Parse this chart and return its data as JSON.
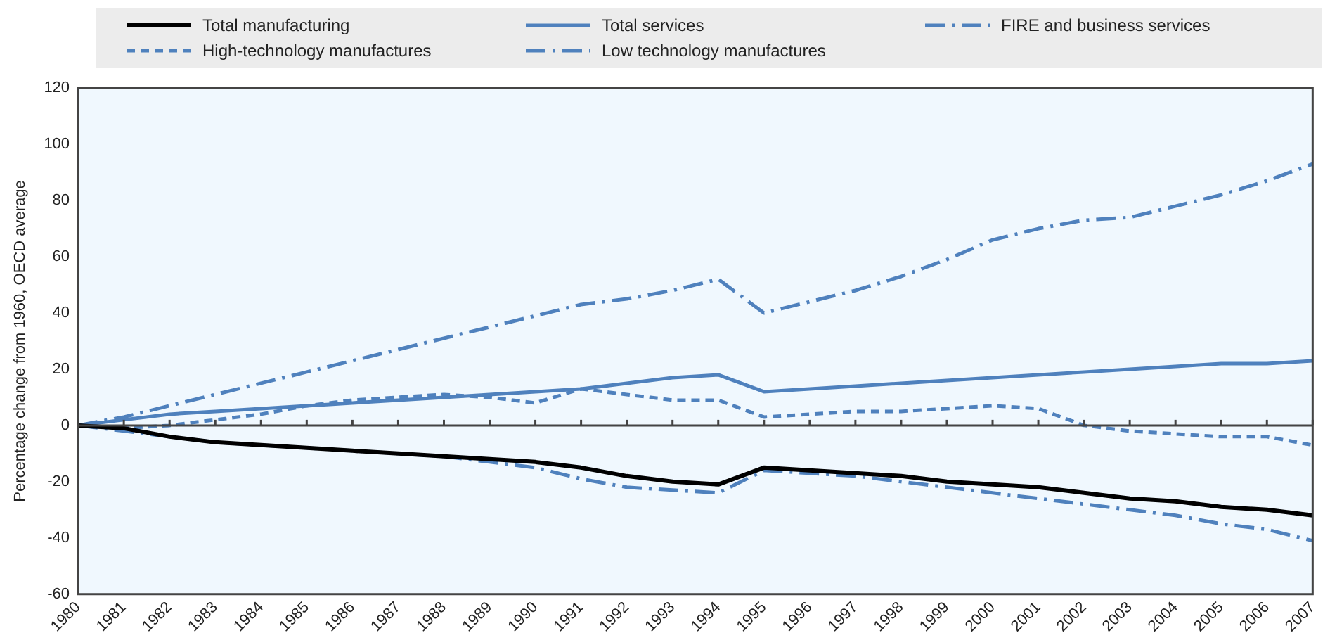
{
  "chart_data": {
    "type": "line",
    "ylabel": "Percentage change from 1960, OECD average",
    "categories": [
      "1980",
      "1981",
      "1982",
      "1983",
      "1984",
      "1985",
      "1986",
      "1987",
      "1988",
      "1989",
      "1990",
      "1991",
      "1992",
      "1993",
      "1994",
      "1995",
      "1996",
      "1997",
      "1998",
      "1999",
      "2000",
      "2001",
      "2002",
      "2003",
      "2004",
      "2005",
      "2006",
      "2007"
    ],
    "ylim": [
      -60,
      120
    ],
    "yticks": [
      -60,
      -40,
      -20,
      0,
      20,
      40,
      60,
      80,
      100,
      120
    ],
    "grid": false,
    "legend": "top",
    "marker": "none",
    "ref_lines": [
      {
        "axis": "y",
        "value": 0,
        "color": "#444444"
      }
    ],
    "series": [
      {
        "name": "Total manufacturing",
        "color": "#000000",
        "line_style": "solid",
        "values": [
          0,
          -1,
          -4,
          -6,
          -7,
          -8,
          -9,
          -10,
          -11,
          -12,
          -13,
          -15,
          -18,
          -20,
          -21,
          -15,
          -16,
          -17,
          -18,
          -20,
          -21,
          -22,
          -24,
          -26,
          -27,
          -29,
          -30,
          -32
        ]
      },
      {
        "name": "Total services",
        "color": "#4f81bd",
        "line_style": "solid",
        "values": [
          0,
          2,
          4,
          5,
          6,
          7,
          8,
          9,
          10,
          11,
          12,
          13,
          15,
          17,
          18,
          12,
          13,
          14,
          15,
          16,
          17,
          18,
          19,
          20,
          21,
          22,
          22,
          23
        ]
      },
      {
        "name": "FIRE and business services",
        "color": "#4f81bd",
        "line_style": "dashdot",
        "values": [
          0,
          3,
          7,
          11,
          15,
          19,
          23,
          27,
          31,
          35,
          39,
          43,
          45,
          48,
          52,
          40,
          44,
          48,
          53,
          59,
          66,
          70,
          73,
          74,
          78,
          82,
          87,
          93
        ]
      },
      {
        "name": "High-technology manufactures",
        "color": "#4f81bd",
        "line_style": "dashed",
        "values": [
          0,
          -1,
          0,
          2,
          4,
          7,
          9,
          10,
          11,
          10,
          8,
          13,
          11,
          9,
          9,
          3,
          4,
          5,
          5,
          6,
          7,
          6,
          0,
          -2,
          -3,
          -4,
          -4,
          -7
        ]
      },
      {
        "name": "Low technology manufactures",
        "color": "#4f81bd",
        "line_style": "dashdot",
        "values": [
          0,
          -2,
          -4,
          -6,
          -7,
          -8,
          -9,
          -10,
          -11,
          -13,
          -15,
          -19,
          -22,
          -23,
          -24,
          -16,
          -17,
          -18,
          -20,
          -22,
          -24,
          -26,
          -28,
          -30,
          -32,
          -35,
          -37,
          -41
        ]
      }
    ]
  }
}
